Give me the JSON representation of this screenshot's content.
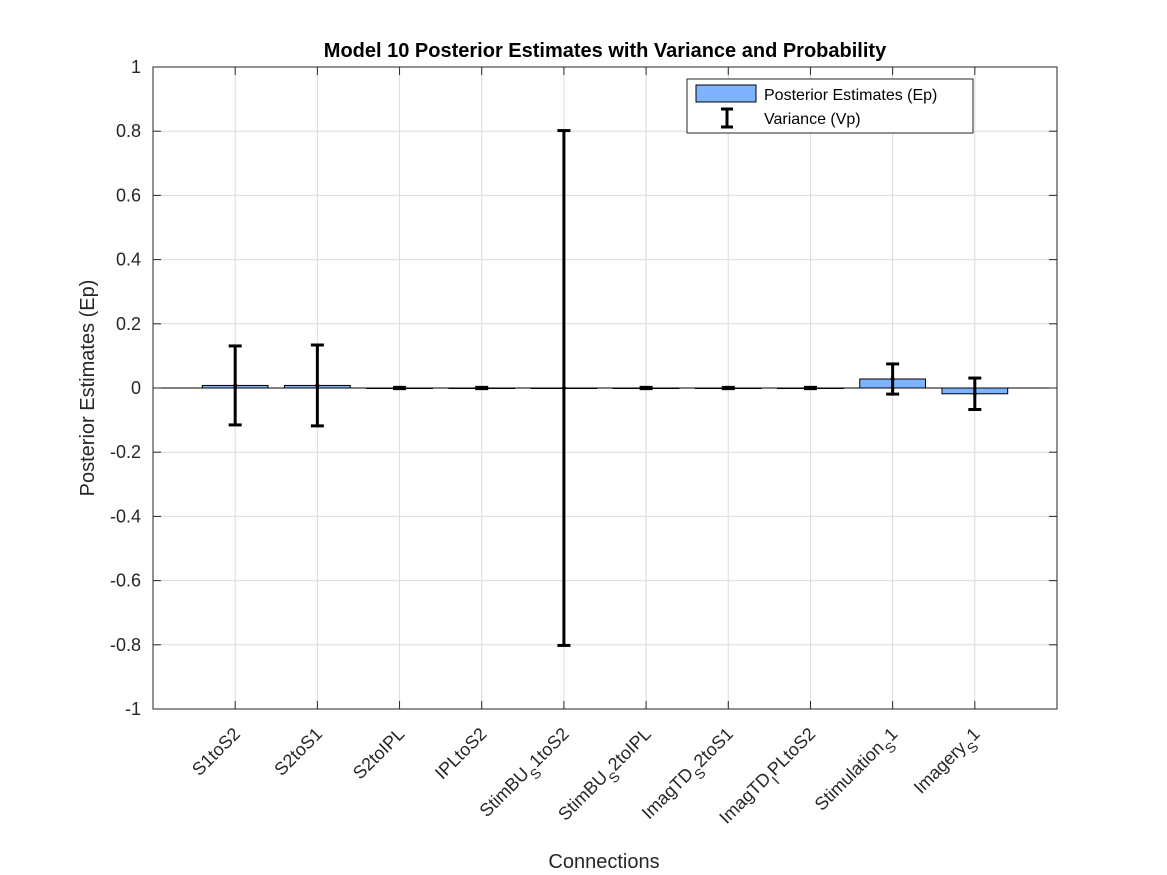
{
  "chart_data": {
    "type": "bar",
    "title": "Model 10 Posterior Estimates with Variance and Probability",
    "xlabel": "Connections",
    "ylabel": "Posterior Estimates (Ep)",
    "ylim": [
      -1,
      1
    ],
    "yticks": [
      -1,
      -0.8,
      -0.6,
      -0.4,
      -0.2,
      0,
      0.2,
      0.4,
      0.6,
      0.8,
      1
    ],
    "ytick_labels": [
      "-1",
      "-0.8",
      "-0.6",
      "-0.4",
      "-0.2",
      "0",
      "0.2",
      "0.4",
      "0.6",
      "0.8",
      "1"
    ],
    "grid": true,
    "legend_position": "top-right",
    "colors": {
      "bar": "#80b3ff",
      "error": "#000000",
      "grid": "#dcdcdc"
    },
    "categories": [
      {
        "main": "S1toS2",
        "sub": "",
        "tail": ""
      },
      {
        "main": "S2toS1",
        "sub": "",
        "tail": ""
      },
      {
        "main": "S2toIPL",
        "sub": "",
        "tail": ""
      },
      {
        "main": "IPLtoS2",
        "sub": "",
        "tail": ""
      },
      {
        "main": "StimBU",
        "sub": "S",
        "tail": "1toS2"
      },
      {
        "main": "StimBU",
        "sub": "S",
        "tail": "2toIPL"
      },
      {
        "main": "ImagTD",
        "sub": "S",
        "tail": "2toS1"
      },
      {
        "main": "ImagTD",
        "sub": "I",
        "tail": "PLtoS2"
      },
      {
        "main": "Stimulation",
        "sub": "S",
        "tail": "1"
      },
      {
        "main": "Imagery",
        "sub": "S",
        "tail": "1"
      }
    ],
    "series": [
      {
        "name": "Posterior Estimates (Ep)",
        "values": [
          0.008,
          0.008,
          0.0,
          0.0,
          0.0,
          0.0,
          0.0,
          0.0,
          0.028,
          -0.018
        ]
      },
      {
        "name": "Variance (Vp)",
        "values": [
          0.123,
          0.126,
          0.002,
          0.002,
          0.802,
          0.002,
          0.002,
          0.002,
          0.047,
          0.049
        ]
      }
    ]
  }
}
